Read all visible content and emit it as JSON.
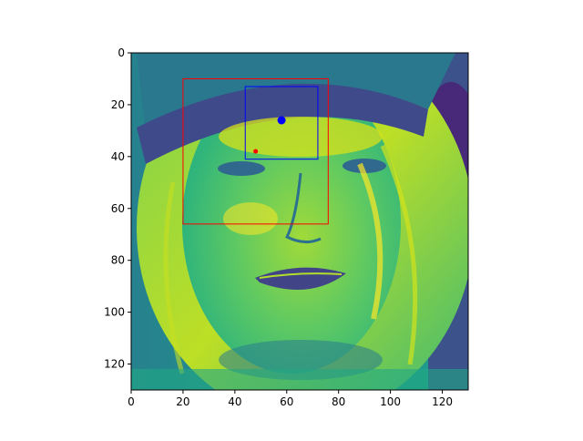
{
  "figure": {
    "background": "#ffffff"
  },
  "image": {
    "description_colormap": "viridis",
    "extent": [
      0,
      130,
      130,
      0
    ]
  },
  "axes": {
    "x_ticks": [
      0,
      20,
      40,
      60,
      80,
      100,
      120
    ],
    "y_ticks": [
      0,
      20,
      40,
      60,
      80,
      100,
      120
    ],
    "x_tick_labels": [
      "0",
      "20",
      "40",
      "60",
      "80",
      "100",
      "120"
    ],
    "y_tick_labels": [
      "0",
      "20",
      "40",
      "60",
      "80",
      "100",
      "120"
    ],
    "xlim": [
      0,
      130
    ],
    "ylim": [
      130,
      0
    ]
  },
  "overlays": {
    "red_box": {
      "x0": 20,
      "y0": 10,
      "x1": 76,
      "y1": 66,
      "color": "#ff0000"
    },
    "blue_box": {
      "x0": 44,
      "y0": 13,
      "x1": 72,
      "y1": 41,
      "color": "#0000ff"
    },
    "blue_point": {
      "x": 58,
      "y": 26,
      "color": "#0000ff"
    },
    "red_point": {
      "x": 48,
      "y": 38,
      "color": "#ff0000"
    }
  },
  "colors": {
    "viridis_dark": "#440154",
    "viridis_teal": "#21918c",
    "viridis_green": "#5ec962",
    "viridis_yellow": "#fde725"
  }
}
